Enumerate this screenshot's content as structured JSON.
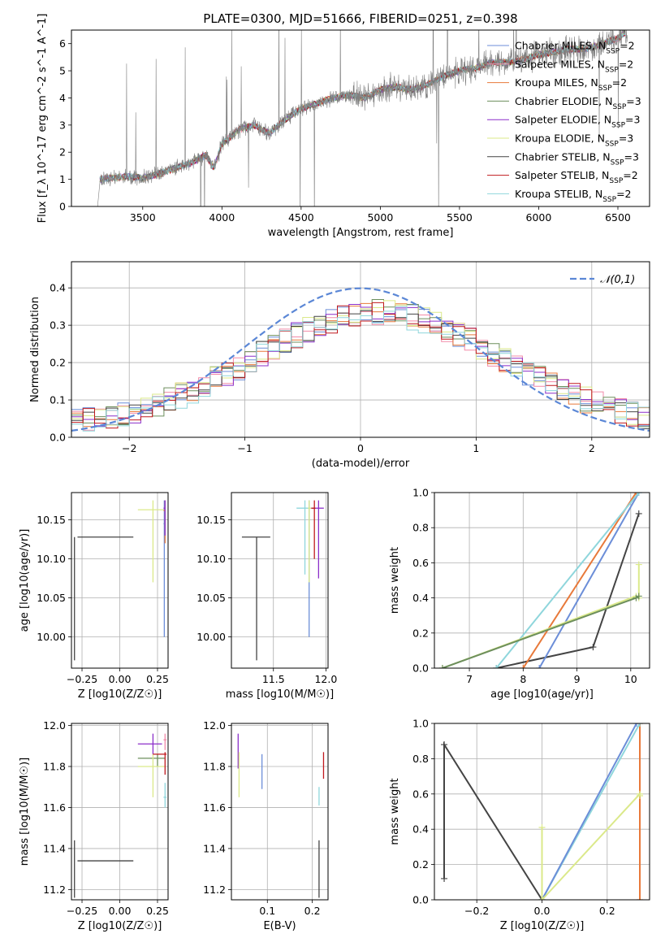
{
  "figure": {
    "title": "PLATE=0300, MJD=51666, FIBERID=0251, z=0.398"
  },
  "series": [
    {
      "name": "Chabrier MILES",
      "nssp": "2",
      "color": "#6c8ed8"
    },
    {
      "name": "Salpeter MILES",
      "nssp": "2",
      "color": "#f28aa8"
    },
    {
      "name": "Kroupa MILES",
      "nssp": "2",
      "color": "#e8793a"
    },
    {
      "name": "Chabrier ELODIE",
      "nssp": "3",
      "color": "#6d8f5d"
    },
    {
      "name": "Salpeter ELODIE",
      "nssp": "3",
      "color": "#8b2fc9"
    },
    {
      "name": "Kroupa ELODIE",
      "nssp": "3",
      "color": "#dbe98a"
    },
    {
      "name": "Chabrier STELIB",
      "nssp": "3",
      "color": "#444444"
    },
    {
      "name": "Salpeter STELIB",
      "nssp": "2",
      "color": "#c0191e"
    },
    {
      "name": "Kroupa STELIB",
      "nssp": "2",
      "color": "#8fd6dc"
    }
  ],
  "chart_data": [
    {
      "id": "spectrum",
      "type": "line",
      "xlabel": "wavelength [Angstrom, rest frame]",
      "ylabel": "Flux [f_λ 10^-17 erg cm^-2 s^-1 A^-1]",
      "xlim": [
        3050,
        6700
      ],
      "ylim": [
        0,
        6.5
      ],
      "xticks": [
        3500,
        4000,
        4500,
        5000,
        5500,
        6000,
        6500
      ],
      "yticks": [
        0,
        1,
        2,
        3,
        4,
        5,
        6
      ],
      "grid": false,
      "legend": "right",
      "data_color": "#808080",
      "continuum": [
        [
          3215,
          0
        ],
        [
          3230,
          1.0
        ],
        [
          3300,
          1.05
        ],
        [
          3400,
          1.1
        ],
        [
          3500,
          1.05
        ],
        [
          3600,
          1.2
        ],
        [
          3700,
          1.4
        ],
        [
          3800,
          1.6
        ],
        [
          3900,
          1.9
        ],
        [
          3950,
          1.4
        ],
        [
          4000,
          2.3
        ],
        [
          4100,
          2.8
        ],
        [
          4200,
          3.0
        ],
        [
          4300,
          2.7
        ],
        [
          4400,
          3.2
        ],
        [
          4500,
          3.6
        ],
        [
          4600,
          3.8
        ],
        [
          4700,
          4.0
        ],
        [
          4800,
          4.1
        ],
        [
          4900,
          4.0
        ],
        [
          5000,
          4.3
        ],
        [
          5100,
          4.4
        ],
        [
          5200,
          4.3
        ],
        [
          5300,
          4.5
        ],
        [
          5400,
          4.8
        ],
        [
          5500,
          5.0
        ],
        [
          5600,
          5.1
        ],
        [
          5700,
          5.3
        ],
        [
          5800,
          5.3
        ],
        [
          5900,
          5.4
        ],
        [
          6000,
          5.6
        ],
        [
          6100,
          5.7
        ],
        [
          6200,
          5.8
        ],
        [
          6300,
          5.8
        ],
        [
          6400,
          6.0
        ],
        [
          6500,
          6.2
        ],
        [
          6550,
          6.4
        ]
      ]
    },
    {
      "id": "residuals",
      "type": "step",
      "xlabel": "(data-model)/error",
      "ylabel": "Normed distribution",
      "xlim": [
        -2.5,
        2.5
      ],
      "ylim": [
        0,
        0.47
      ],
      "xticks": [
        -2,
        -1,
        0,
        1,
        2
      ],
      "yticks": [
        0.0,
        0.1,
        0.2,
        0.3,
        0.4
      ],
      "grid": true,
      "legend": "top-right",
      "reference": {
        "label": "𝒩(0,1)",
        "mean": 0,
        "sigma": 1,
        "color": "#5b87d6"
      }
    },
    {
      "id": "age-vs-Z",
      "type": "errorbar",
      "xlabel": "Z [log10(Z/Z☉)]",
      "ylabel": "age [log10(age/yr)]",
      "xlim": [
        -0.32,
        0.32
      ],
      "ylim": [
        9.96,
        10.185
      ],
      "xticks": [
        -0.25,
        0.0,
        0.25
      ],
      "yticks": [
        10.0,
        10.05,
        10.1,
        10.15
      ],
      "grid": true,
      "points": [
        {
          "s": 6,
          "x": [
            -0.3,
            -0.28,
            0.09
          ],
          "y": [
            10.128,
            9.97,
            10.128
          ]
        },
        {
          "s": 5,
          "x": [
            0.22,
            0.12,
            0.3
          ],
          "y": [
            10.163,
            10.07,
            10.175
          ]
        },
        {
          "s": 0,
          "x": [
            0.295,
            0.29,
            0.3
          ],
          "y": [
            10.145,
            10.0,
            10.175
          ]
        },
        {
          "s": 2,
          "x": [
            0.3,
            0.29,
            0.3
          ],
          "y": [
            10.162,
            10.12,
            10.175
          ]
        },
        {
          "s": 4,
          "x": [
            0.3,
            0.29,
            0.3
          ],
          "y": [
            10.165,
            10.13,
            10.175
          ]
        }
      ]
    },
    {
      "id": "age-vs-mass",
      "type": "errorbar",
      "xlabel": "mass [log10(M/M☉)]",
      "ylabel": "",
      "xlim": [
        11.1,
        12.02
      ],
      "ylim": [
        9.96,
        10.185
      ],
      "xticks": [
        11.5,
        12.0
      ],
      "yticks": [
        10.0,
        10.05,
        10.1,
        10.15
      ],
      "grid": true,
      "points": [
        {
          "s": 6,
          "x": [
            11.34,
            11.2,
            11.47
          ],
          "y": [
            10.128,
            9.97,
            10.128
          ]
        },
        {
          "s": 8,
          "x": [
            11.8,
            11.72,
            11.88
          ],
          "y": [
            10.165,
            10.08,
            10.175
          ]
        },
        {
          "s": 0,
          "x": [
            11.84,
            11.84,
            11.84
          ],
          "y": [
            10.1,
            10.0,
            10.175
          ]
        },
        {
          "s": 5,
          "x": [
            11.84,
            11.83,
            11.86
          ],
          "y": [
            10.165,
            10.07,
            10.175
          ]
        },
        {
          "s": 4,
          "x": [
            11.93,
            11.87,
            11.98
          ],
          "y": [
            10.165,
            10.075,
            10.175
          ]
        },
        {
          "s": 7,
          "x": [
            11.89,
            11.86,
            11.9
          ],
          "y": [
            10.165,
            10.1,
            10.175
          ]
        }
      ]
    },
    {
      "id": "massweight-vs-age",
      "type": "line",
      "xlabel": "age [log10(age/yr)]",
      "ylabel": "mass weight",
      "xlim": [
        6.35,
        10.35
      ],
      "ylim": [
        0,
        1
      ],
      "xticks": [
        7,
        8,
        9,
        10
      ],
      "yticks": [
        0.0,
        0.2,
        0.4,
        0.6,
        0.8,
        1.0
      ],
      "grid": true,
      "lines": [
        {
          "s": 6,
          "x": [
            7.5,
            9.3,
            10.15
          ],
          "y": [
            0.0,
            0.12,
            0.88
          ]
        },
        {
          "s": 2,
          "x": [
            8.0,
            10.1
          ],
          "y": [
            0.0,
            1.0
          ]
        },
        {
          "s": 0,
          "x": [
            8.3,
            10.15
          ],
          "y": [
            0.0,
            1.0
          ]
        },
        {
          "s": 8,
          "x": [
            7.5,
            10.15
          ],
          "y": [
            0.0,
            1.0
          ]
        },
        {
          "s": 5,
          "x": [
            6.5,
            10.1,
            10.15,
            10.15
          ],
          "y": [
            0.0,
            0.41,
            0.4,
            0.59
          ]
        },
        {
          "s": 3,
          "x": [
            6.5,
            10.1,
            10.15
          ],
          "y": [
            0.0,
            0.4,
            0.41
          ]
        }
      ]
    },
    {
      "id": "mass-vs-Z",
      "type": "errorbar",
      "xlabel": "Z [log10(Z/Z☉)]",
      "ylabel": "mass [log10(M/M☉)]",
      "xlim": [
        -0.32,
        0.32
      ],
      "ylim": [
        11.15,
        12.01
      ],
      "xticks": [
        -0.25,
        0.0,
        0.25
      ],
      "yticks": [
        11.2,
        11.4,
        11.6,
        11.8,
        12.0
      ],
      "grid": true,
      "points": [
        {
          "s": 6,
          "x": [
            -0.3,
            -0.28,
            0.09
          ],
          "y": [
            11.34,
            11.16,
            11.44
          ]
        },
        {
          "s": 4,
          "x": [
            0.22,
            0.12,
            0.28
          ],
          "y": [
            11.91,
            11.86,
            11.96
          ]
        },
        {
          "s": 3,
          "x": [
            0.25,
            0.12,
            0.3
          ],
          "y": [
            11.84,
            11.8,
            11.86
          ]
        },
        {
          "s": 5,
          "x": [
            0.22,
            0.12,
            0.3
          ],
          "y": [
            11.8,
            11.65,
            11.86
          ]
        },
        {
          "s": 7,
          "x": [
            0.3,
            0.22,
            0.31
          ],
          "y": [
            11.86,
            11.76,
            11.87
          ]
        },
        {
          "s": 1,
          "x": [
            0.3,
            0.29,
            0.31
          ],
          "y": [
            11.93,
            11.88,
            11.96
          ]
        },
        {
          "s": 8,
          "x": [
            0.3,
            0.29,
            0.31
          ],
          "y": [
            11.65,
            11.6,
            11.72
          ]
        }
      ]
    },
    {
      "id": "mass-vs-ebv",
      "type": "errorbar",
      "xlabel": "E(B-V)",
      "ylabel": "",
      "xlim": [
        0.02,
        0.235
      ],
      "ylim": [
        11.15,
        12.01
      ],
      "xticks": [
        0.1,
        0.2
      ],
      "yticks": [
        11.2,
        11.4,
        11.6,
        11.8,
        12.0
      ],
      "grid": true,
      "points": [
        {
          "s": 6,
          "x": [
            0.215,
            0.215,
            0.215
          ],
          "y": [
            11.3,
            11.16,
            11.44
          ]
        },
        {
          "s": 0,
          "x": [
            0.088,
            0.088,
            0.088
          ],
          "y": [
            11.77,
            11.69,
            11.86
          ]
        },
        {
          "s": 4,
          "x": [
            0.035,
            0.035,
            0.035
          ],
          "y": [
            11.88,
            11.79,
            11.96
          ]
        },
        {
          "s": 5,
          "x": [
            0.037,
            0.037,
            0.037
          ],
          "y": [
            11.76,
            11.65,
            11.87
          ]
        },
        {
          "s": 7,
          "x": [
            0.225,
            0.225,
            0.225
          ],
          "y": [
            11.8,
            11.74,
            11.87
          ]
        },
        {
          "s": 8,
          "x": [
            0.215,
            0.215,
            0.215
          ],
          "y": [
            11.65,
            11.61,
            11.7
          ]
        }
      ]
    },
    {
      "id": "massweight-vs-Z",
      "type": "line",
      "xlabel": "Z [log10(Z/Z☉)]",
      "ylabel": "mass weight",
      "xlim": [
        -0.33,
        0.33
      ],
      "ylim": [
        0,
        1
      ],
      "xticks": [
        -0.2,
        0.0,
        0.2
      ],
      "yticks": [
        0.0,
        0.2,
        0.4,
        0.6,
        0.8,
        1.0
      ],
      "grid": true,
      "lines": [
        {
          "s": 6,
          "x": [
            -0.3,
            -0.3,
            0.0
          ],
          "y": [
            0.12,
            0.88,
            0.0
          ]
        },
        {
          "s": 2,
          "x": [
            0.3,
            0.3
          ],
          "y": [
            0.0,
            1.0
          ]
        },
        {
          "s": 8,
          "x": [
            0.0,
            0.3
          ],
          "y": [
            0.0,
            1.0
          ]
        },
        {
          "s": 0,
          "x": [
            0.0,
            0.29
          ],
          "y": [
            0.0,
            1.0
          ]
        },
        {
          "s": 5,
          "x": [
            0.0,
            0.0,
            0.0,
            0.3,
            0.3
          ],
          "y": [
            0.0,
            0.41,
            0.0,
            0.6,
            0.59
          ]
        }
      ]
    }
  ]
}
